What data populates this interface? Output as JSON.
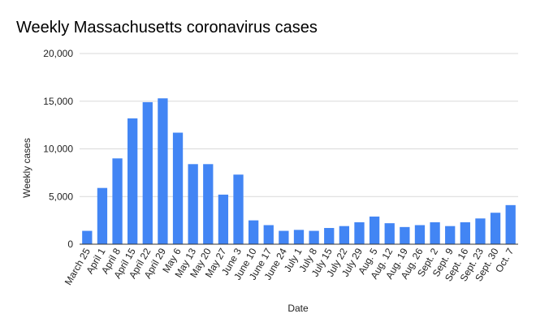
{
  "chart_data": {
    "type": "bar",
    "title": "Weekly Massachusetts coronavirus cases",
    "xlabel": "Date",
    "ylabel": "Weekly cases",
    "ylim": [
      0,
      20000
    ],
    "yticks": [
      "0",
      "5,000",
      "10,000",
      "15,000",
      "20,000"
    ],
    "ytick_values": [
      0,
      5000,
      10000,
      15000,
      20000
    ],
    "grid": true,
    "legend": "none",
    "bar_color": "#4285f4",
    "categories": [
      "March 25",
      "April 1",
      "April 8",
      "April 15",
      "April 22",
      "April 29",
      "May 6",
      "May 13",
      "May 20",
      "May 27",
      "June 3",
      "June 10",
      "June 17",
      "June 24",
      "July 1",
      "July 8",
      "July 15",
      "July 22",
      "July 29",
      "Aug. 5",
      "Aug. 12",
      "Aug. 19",
      "Aug. 26",
      "Sept. 2",
      "Sept. 9",
      "Sept. 16",
      "Sept. 23",
      "Sept. 30",
      "Oct. 7"
    ],
    "values": [
      1400,
      5900,
      9000,
      13200,
      14900,
      15300,
      11700,
      8400,
      8400,
      5200,
      7300,
      2500,
      2000,
      1400,
      1500,
      1400,
      1700,
      1900,
      2300,
      2900,
      2200,
      1800,
      2000,
      2300,
      1900,
      2300,
      2700,
      3300,
      4100
    ]
  }
}
